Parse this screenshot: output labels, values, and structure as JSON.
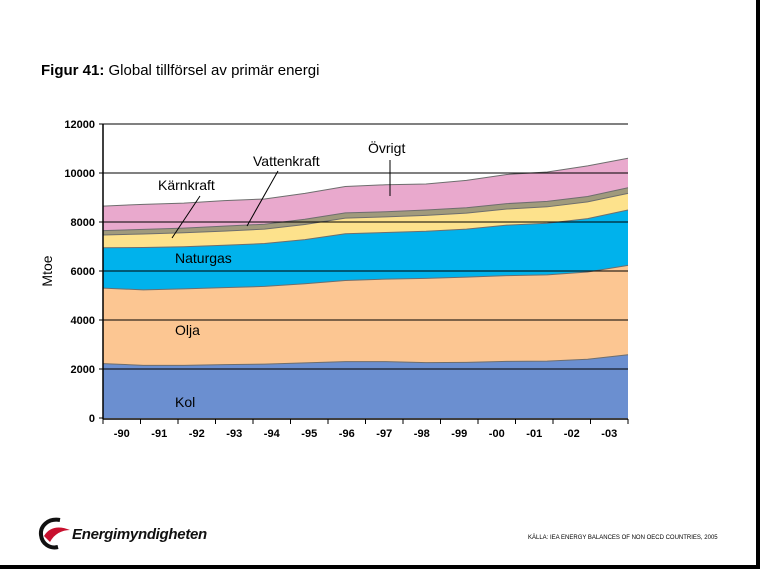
{
  "title": {
    "figure": "Figur 41:",
    "text": "Global tillförsel av primär energi"
  },
  "source": "KÄLLA: IEA ENERGY BALANCES OF NON OECD COUNTRIES, 2005",
  "logo": {
    "text": "Energimyndigheten",
    "color": "#c8102e"
  },
  "chart_data": {
    "type": "area",
    "stacked": true,
    "ylabel": "Mtoe",
    "ylim": [
      0,
      12000
    ],
    "yticks": [
      0,
      2000,
      4000,
      6000,
      8000,
      10000,
      12000
    ],
    "categories": [
      "-90",
      "-91",
      "-92",
      "-93",
      "-94",
      "-95",
      "-96",
      "-97",
      "-98",
      "-99",
      "-00",
      "-01",
      "-02",
      "-03"
    ],
    "grid": true,
    "series": [
      {
        "name": "Kol",
        "color": "#6b8fd0",
        "values": [
          2220,
          2150,
          2150,
          2180,
          2200,
          2250,
          2300,
          2300,
          2260,
          2270,
          2310,
          2320,
          2400,
          2580
        ]
      },
      {
        "name": "Olja",
        "color": "#fcc692",
        "values": [
          3080,
          3080,
          3120,
          3140,
          3170,
          3230,
          3310,
          3370,
          3440,
          3480,
          3500,
          3520,
          3560,
          3650
        ]
      },
      {
        "name": "Naturgas",
        "color": "#00b2ec",
        "values": [
          1650,
          1730,
          1720,
          1730,
          1750,
          1800,
          1910,
          1900,
          1920,
          1960,
          2060,
          2110,
          2180,
          2260
        ]
      },
      {
        "name": "Kärnkraft",
        "color": "#fde28c",
        "values": [
          520,
          550,
          570,
          580,
          590,
          620,
          640,
          640,
          650,
          650,
          660,
          670,
          680,
          680
        ]
      },
      {
        "name": "Vattenkraft",
        "color": "#a09a7c",
        "values": [
          180,
          190,
          190,
          200,
          200,
          210,
          210,
          210,
          220,
          220,
          220,
          220,
          220,
          230
        ]
      },
      {
        "name": "Övrigt",
        "color": "#e9a9cd",
        "values": [
          1000,
          1020,
          1020,
          1040,
          1030,
          1060,
          1080,
          1100,
          1060,
          1120,
          1190,
          1200,
          1250,
          1200
        ]
      }
    ]
  }
}
